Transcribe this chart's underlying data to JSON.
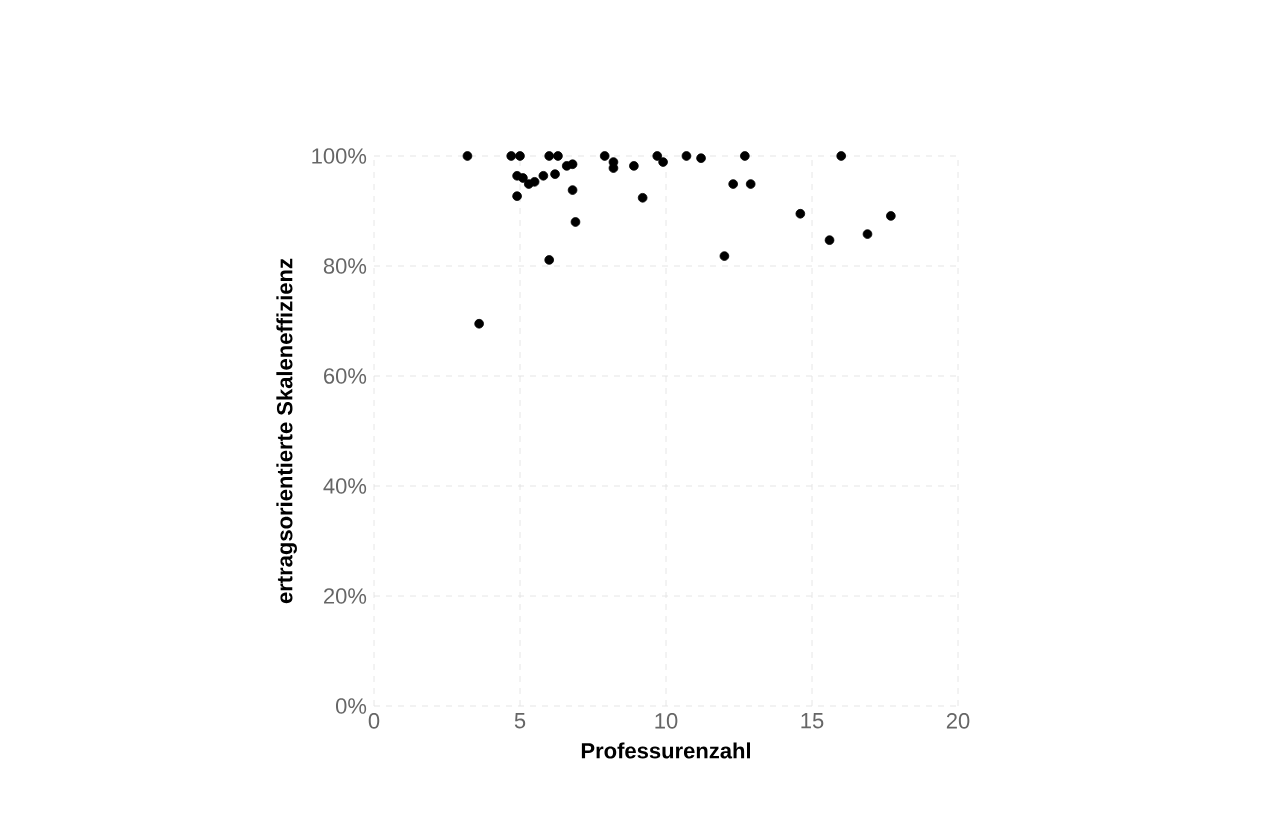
{
  "chart_data": {
    "type": "scatter",
    "xlabel": "Professurenzahl",
    "ylabel": "ertragsorientierte Skaleneffizienz",
    "x": [
      3.2,
      4.7,
      5.0,
      6.0,
      6.3,
      6.6,
      6.8,
      7.9,
      8.2,
      8.2,
      8.9,
      9.7,
      9.9,
      10.7,
      11.2,
      12.3,
      4.9,
      5.1,
      4.9,
      5.3,
      5.5,
      5.8,
      6.2,
      6.8,
      6.9,
      6.0,
      9.2,
      12.0,
      12.7,
      12.9,
      14.6,
      16.0,
      15.6,
      16.9,
      17.7,
      3.6
    ],
    "values": [
      100,
      100,
      100,
      100,
      100,
      98.2,
      98.5,
      100,
      98.9,
      97.8,
      98.2,
      100,
      98.9,
      100,
      99.6,
      94.9,
      96.4,
      96,
      92.7,
      94.9,
      95.3,
      96.4,
      96.7,
      93.8,
      88,
      81.1,
      92.4,
      81.8,
      100,
      94.9,
      89.5,
      100,
      84.7,
      85.8,
      89.1,
      69.5
    ],
    "color": "#000000",
    "marker": "circle",
    "xlim": [
      0,
      20
    ],
    "xticks": [
      0,
      5,
      10,
      15,
      20
    ],
    "ylim": [
      0,
      100
    ],
    "yticks": [
      {
        "value": 0,
        "label": "0%"
      },
      {
        "value": 20,
        "label": "20%"
      },
      {
        "value": 40,
        "label": "40%"
      },
      {
        "value": 60,
        "label": "60%"
      },
      {
        "value": 80,
        "label": "80%"
      },
      {
        "value": 100,
        "label": "100%"
      }
    ],
    "grid": true
  }
}
